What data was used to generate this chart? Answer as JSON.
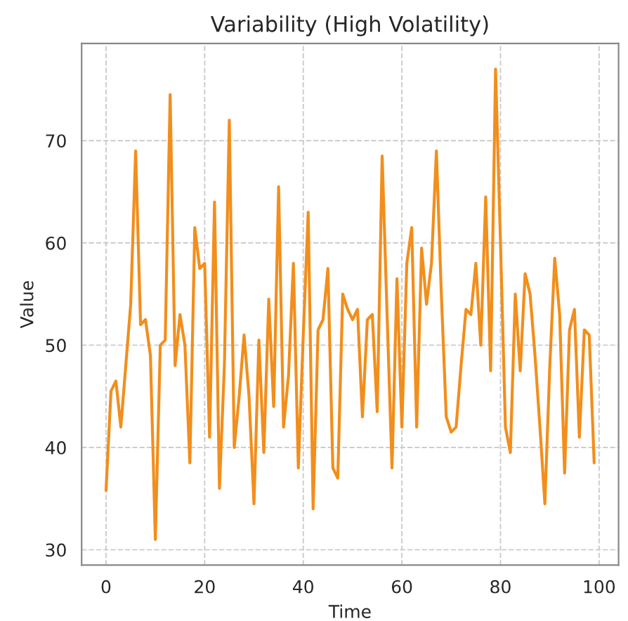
{
  "chart_data": {
    "type": "line",
    "title": "Variability (High Volatility)",
    "xlabel": "Time",
    "ylabel": "Value",
    "x": [
      0,
      1,
      2,
      3,
      4,
      5,
      6,
      7,
      8,
      9,
      10,
      11,
      12,
      13,
      14,
      15,
      16,
      17,
      18,
      19,
      20,
      21,
      22,
      23,
      24,
      25,
      26,
      27,
      28,
      29,
      30,
      31,
      32,
      33,
      34,
      35,
      36,
      37,
      38,
      39,
      40,
      41,
      42,
      43,
      44,
      45,
      46,
      47,
      48,
      49,
      50,
      51,
      52,
      53,
      54,
      55,
      56,
      57,
      58,
      59,
      60,
      61,
      62,
      63,
      64,
      65,
      66,
      67,
      68,
      69,
      70,
      71,
      72,
      73,
      74,
      75,
      76,
      77,
      78,
      79,
      80,
      81,
      82,
      83,
      84,
      85,
      86,
      87,
      88,
      89,
      90,
      91,
      92,
      93,
      94,
      95,
      96,
      97,
      98,
      99
    ],
    "series": [
      {
        "color": "#f28e1c",
        "values": [
          35.8,
          45.5,
          46.5,
          42,
          48,
          54,
          69,
          52,
          52.5,
          49,
          31,
          50,
          50.5,
          74.5,
          48,
          53,
          50,
          38.5,
          61.5,
          57.5,
          58,
          41,
          64,
          36,
          48,
          72,
          40,
          45,
          51,
          45,
          34.5,
          50.5,
          39.5,
          54.5,
          44,
          65.5,
          42,
          47,
          58,
          38,
          51,
          63,
          34,
          51.5,
          52.5,
          57.5,
          38,
          37,
          55,
          53.5,
          52.5,
          53.5,
          43,
          52.5,
          53,
          43.5,
          68.5,
          53,
          38,
          56.5,
          42,
          58,
          61.5,
          42,
          59.5,
          54,
          58,
          69,
          55,
          43,
          41.5,
          42,
          48,
          53.5,
          53,
          58,
          50,
          64.5,
          47.5,
          77,
          60,
          42,
          39.5,
          55,
          47.5,
          57,
          55,
          49,
          42,
          34.5,
          48,
          58.5,
          53,
          37.5,
          51.5,
          53.5,
          41,
          51.5,
          51,
          38.5
        ]
      }
    ],
    "xlim": [
      -4.95,
      103.95
    ],
    "ylim": [
      28.5,
      79.5
    ],
    "xticks": [
      0,
      20,
      40,
      60,
      80,
      100
    ],
    "yticks": [
      30,
      40,
      50,
      60,
      70
    ],
    "grid": true,
    "marker": "none",
    "line_style": "solid"
  }
}
